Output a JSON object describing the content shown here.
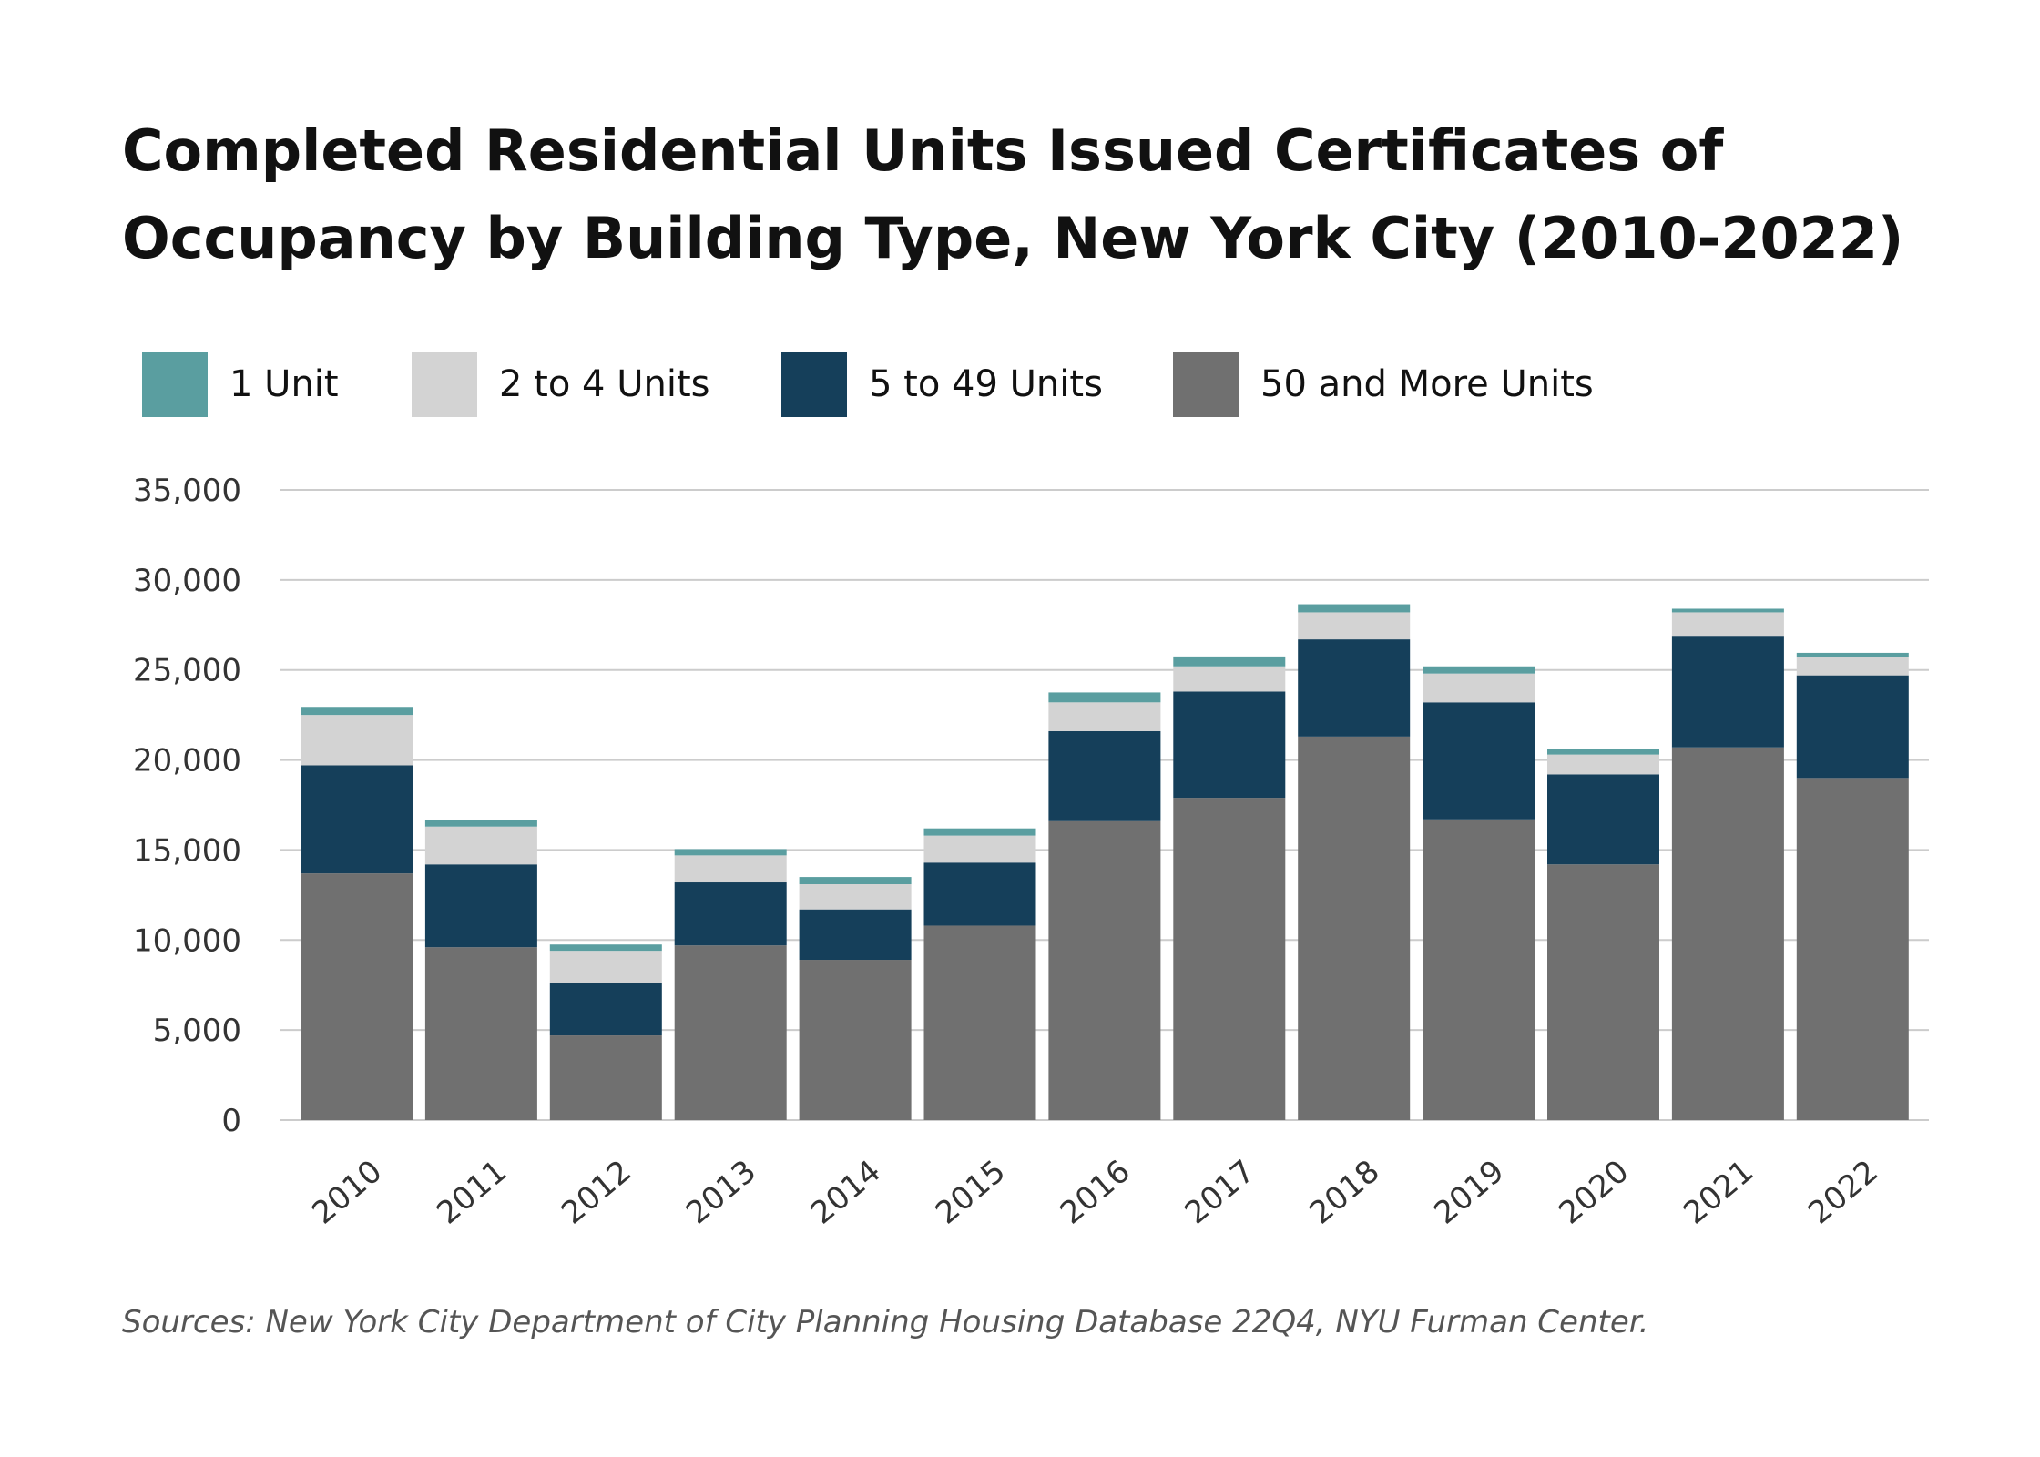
{
  "title": "Completed Residential Units Issued Certificates of Occupancy by Building Type, New York City (2010-2022)",
  "source": "Sources: New York City Department of City Planning Housing Database 22Q4, NYU Furman Center.",
  "legend": [
    {
      "label": "1 Unit",
      "color": "#5a9ea0"
    },
    {
      "label": "2 to 4 Units",
      "color": "#d3d3d3"
    },
    {
      "label": "5 to 49 Units",
      "color": "#153f5a"
    },
    {
      "label": "50 and More Units",
      "color": "#707070"
    }
  ],
  "chart_data": {
    "type": "bar",
    "stacked": true,
    "title": "Completed Residential Units Issued Certificates of Occupancy by Building Type, New York City (2010-2022)",
    "categories": [
      "2010",
      "2011",
      "2012",
      "2013",
      "2014",
      "2015",
      "2016",
      "2017",
      "2018",
      "2019",
      "2020",
      "2021",
      "2022"
    ],
    "series": [
      {
        "name": "50 and More Units",
        "color": "#707070",
        "values": [
          13700,
          9600,
          4700,
          9700,
          8900,
          10800,
          16600,
          17900,
          21300,
          16700,
          14200,
          20700,
          19000
        ]
      },
      {
        "name": "5 to 49 Units",
        "color": "#153f5a",
        "values": [
          6000,
          4600,
          2900,
          3500,
          2800,
          3500,
          5000,
          5900,
          5400,
          6500,
          5000,
          6200,
          5700
        ]
      },
      {
        "name": "2 to 4 Units",
        "color": "#d3d3d3",
        "values": [
          2800,
          2100,
          1800,
          1500,
          1400,
          1500,
          1600,
          1400,
          1500,
          1600,
          1100,
          1300,
          1000
        ]
      },
      {
        "name": "1 Unit",
        "color": "#5a9ea0",
        "values": [
          450,
          350,
          350,
          350,
          400,
          400,
          550,
          550,
          450,
          400,
          300,
          200,
          250
        ]
      }
    ],
    "yticks": [
      "0",
      "5,000",
      "10,000",
      "15,000",
      "20,000",
      "25,000",
      "30,000",
      "35,000"
    ],
    "ylim": [
      0,
      35000
    ],
    "xlabel": "",
    "ylabel": "",
    "grid": true,
    "legend_position": "top"
  }
}
